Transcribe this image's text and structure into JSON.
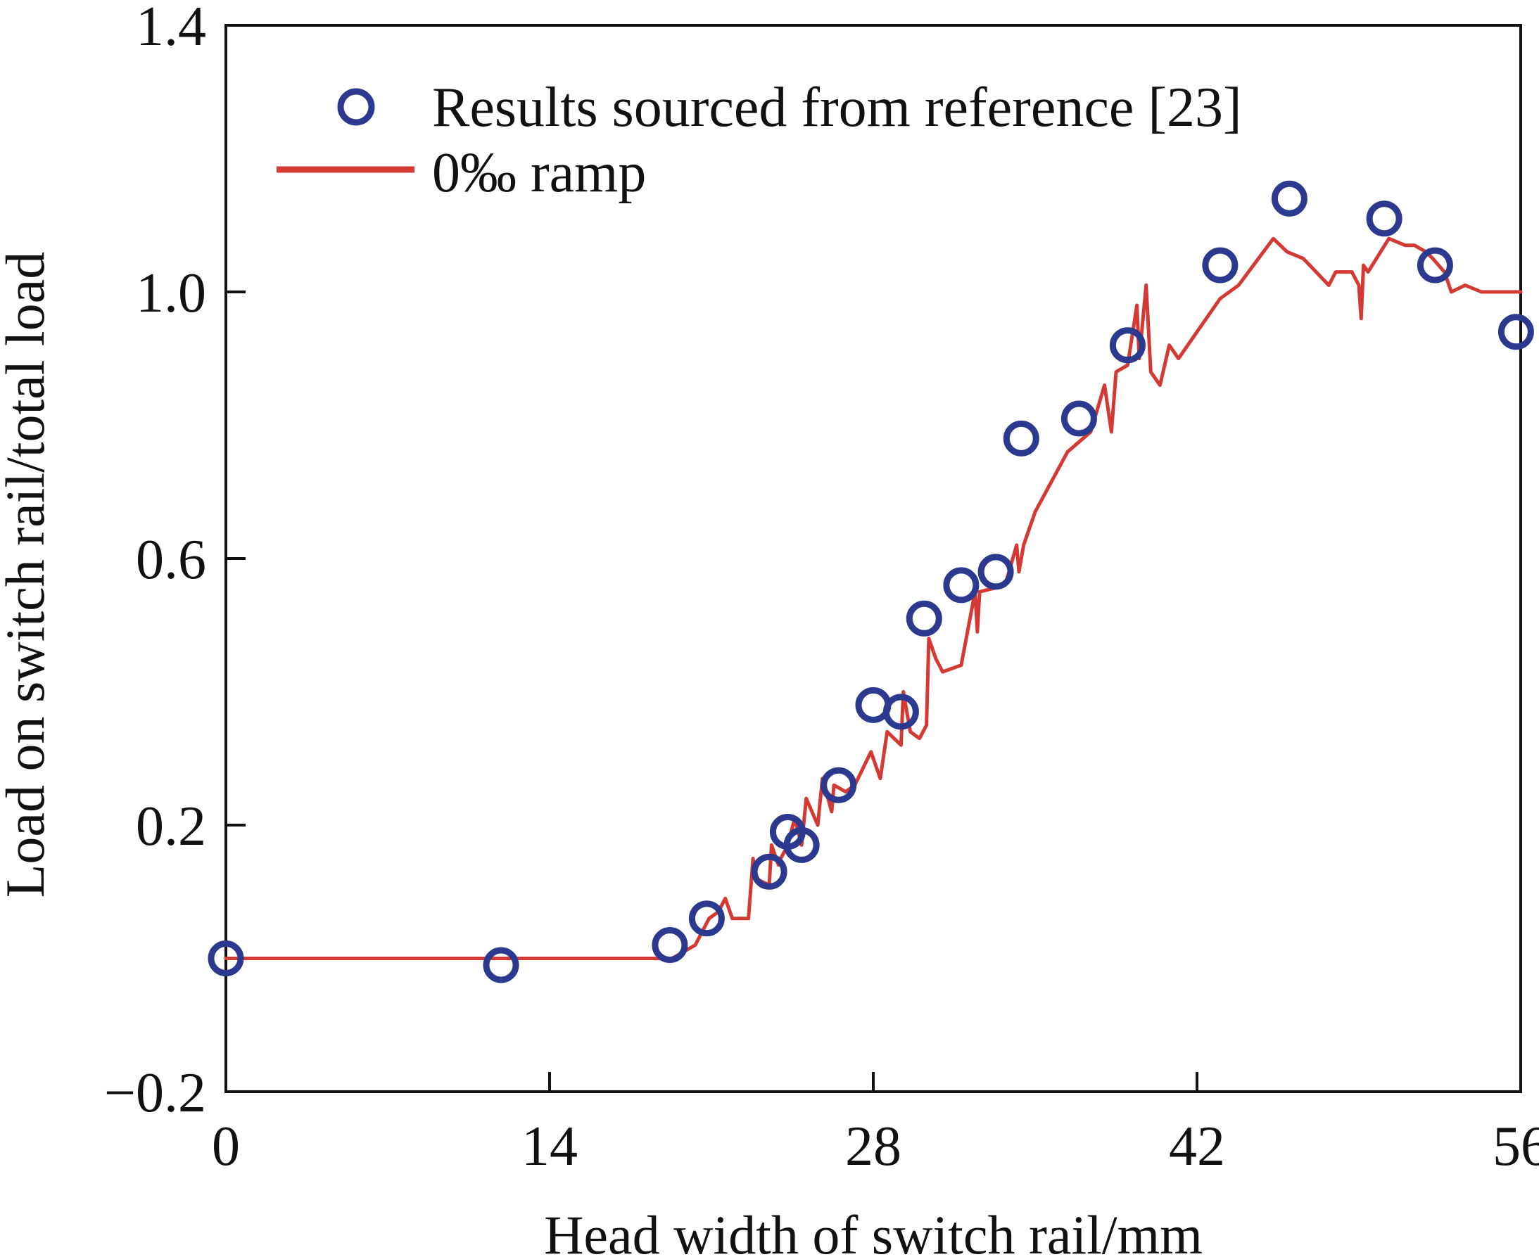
{
  "chart_data": {
    "type": "line",
    "xlabel": "Head width of switch rail/mm",
    "ylabel": "Load on switch rail/total load",
    "xlim": [
      0,
      56
    ],
    "ylim": [
      -0.2,
      1.4
    ],
    "xticks": [
      0,
      14,
      28,
      42,
      56
    ],
    "yticks": [
      -0.2,
      0.2,
      0.6,
      1.0,
      1.4
    ],
    "xtick_labels": [
      "0",
      "14",
      "28",
      "42",
      "56"
    ],
    "ytick_labels": [
      "−0.2",
      "0.2",
      "0.6",
      "1.0",
      "1.4"
    ],
    "grid": false,
    "legend_position": "top-left",
    "series": [
      {
        "name": "Results sourced from reference [23]",
        "kind": "scatter",
        "marker": "open-circle",
        "color": "#2b3a8f",
        "x": [
          0,
          11.9,
          19.2,
          20.8,
          23.5,
          24.3,
          24.9,
          26.5,
          28.0,
          29.2,
          30.2,
          31.8,
          33.3,
          34.4,
          36.9,
          39.0,
          43.0,
          46.0,
          50.1,
          52.3,
          55.8
        ],
        "y": [
          0.0,
          -0.01,
          0.02,
          0.06,
          0.13,
          0.19,
          0.17,
          0.26,
          0.38,
          0.37,
          0.51,
          0.56,
          0.58,
          0.78,
          0.81,
          0.92,
          1.04,
          1.14,
          1.11,
          1.04,
          0.94
        ]
      },
      {
        "name": "0‰ ramp",
        "kind": "line",
        "color": "#d43a33",
        "x": [
          0,
          19.3,
          20.3,
          20.9,
          21.3,
          21.6,
          21.9,
          22.1,
          22.6,
          22.8,
          22.9,
          23.5,
          23.6,
          23.9,
          24.0,
          24.3,
          24.6,
          24.9,
          25.1,
          25.6,
          25.8,
          26.2,
          26.3,
          26.8,
          27.2,
          27.9,
          28.3,
          28.6,
          29.2,
          29.3,
          29.6,
          30.0,
          30.3,
          30.4,
          30.7,
          31.0,
          31.8,
          32.4,
          32.5,
          32.6,
          33.7,
          34.2,
          34.3,
          34.5,
          35.0,
          36.4,
          37.4,
          38.0,
          38.3,
          38.5,
          39.0,
          39.4,
          39.5,
          39.8,
          40.0,
          40.4,
          40.8,
          41.2,
          42.4,
          43.0,
          43.8,
          45.3,
          45.9,
          46.6,
          47.7,
          48.0,
          48.7,
          49.0,
          49.1,
          49.2,
          49.4,
          50.3,
          51.0,
          51.4,
          51.9,
          52.2,
          52.7,
          53.0,
          53.6,
          54.3,
          55.0,
          56.0
        ],
        "y": [
          0.0,
          0.0,
          0.02,
          0.06,
          0.07,
          0.09,
          0.06,
          0.06,
          0.06,
          0.15,
          0.12,
          0.11,
          0.17,
          0.14,
          0.15,
          0.17,
          0.21,
          0.17,
          0.24,
          0.2,
          0.27,
          0.22,
          0.26,
          0.25,
          0.26,
          0.31,
          0.27,
          0.34,
          0.32,
          0.4,
          0.34,
          0.33,
          0.35,
          0.48,
          0.45,
          0.43,
          0.44,
          0.55,
          0.49,
          0.55,
          0.56,
          0.62,
          0.58,
          0.62,
          0.67,
          0.76,
          0.79,
          0.86,
          0.79,
          0.88,
          0.89,
          0.98,
          0.9,
          1.01,
          0.88,
          0.86,
          0.92,
          0.9,
          0.96,
          0.99,
          1.01,
          1.08,
          1.06,
          1.05,
          1.01,
          1.03,
          1.03,
          1.01,
          0.96,
          1.04,
          1.03,
          1.08,
          1.07,
          1.07,
          1.06,
          1.05,
          1.03,
          1.0,
          1.01,
          1.0,
          1.0,
          1.0
        ]
      }
    ]
  }
}
